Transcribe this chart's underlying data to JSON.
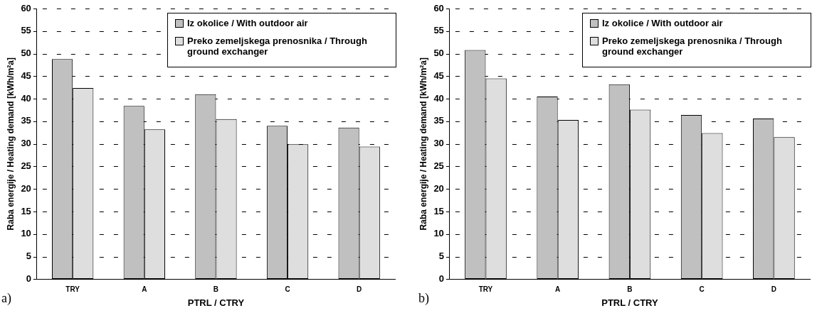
{
  "chart_data": [
    {
      "type": "bar",
      "categories": [
        "TRY",
        "A",
        "B",
        "C",
        "D"
      ],
      "xlabel": "PTRL / CTRY",
      "ylabel": "Raba energije / Heating demand [kWh/m²a]",
      "ylim": [
        0,
        60
      ],
      "yticks": [
        0,
        5,
        10,
        15,
        20,
        25,
        30,
        35,
        40,
        45,
        50,
        55,
        60
      ],
      "grid": "y",
      "legend": "top right",
      "annotations": [
        "a)"
      ],
      "series": [
        {
          "name": "Iz okolice / With outdoor air",
          "color": "#c0c0c0",
          "values": [
            48.8,
            38.4,
            41.0,
            34.0,
            33.6
          ]
        },
        {
          "name": "Preko zemeljskega prenosnika / Through ground exchanger",
          "color": "#dedede",
          "values": [
            42.4,
            33.2,
            35.5,
            29.9,
            29.4
          ]
        }
      ]
    },
    {
      "type": "bar",
      "categories": [
        "TRY",
        "A",
        "B",
        "C",
        "D"
      ],
      "xlabel": "PTRL / CTRY",
      "ylabel": "Raba energije / Heating demand [kWh/m²a]",
      "ylim": [
        0,
        60
      ],
      "yticks": [
        0,
        5,
        10,
        15,
        20,
        25,
        30,
        35,
        40,
        45,
        50,
        55,
        60
      ],
      "grid": "y",
      "legend": "top right",
      "annotations": [
        "b)"
      ],
      "series": [
        {
          "name": "Iz okolice / With outdoor air",
          "color": "#c0c0c0",
          "values": [
            50.8,
            40.5,
            43.2,
            36.4,
            35.6
          ]
        },
        {
          "name": "Preko zemeljskega prenosnika / Through ground exchanger",
          "color": "#dedede",
          "values": [
            44.5,
            35.3,
            37.6,
            32.4,
            31.5
          ]
        }
      ]
    }
  ]
}
